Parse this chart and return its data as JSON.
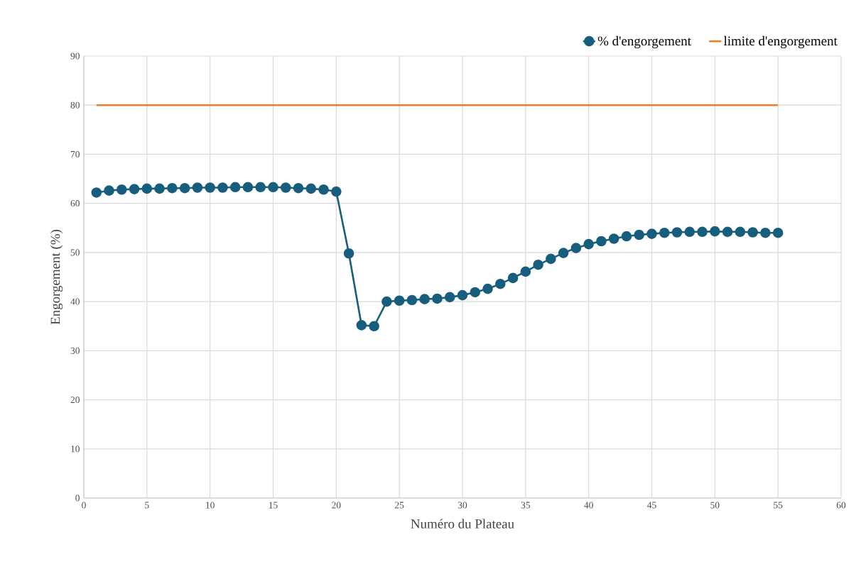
{
  "chart_data": {
    "type": "line",
    "xlabel": "Numéro du Plateau",
    "ylabel": "Engorgement (%)",
    "xlim": [
      0,
      60
    ],
    "ylim": [
      0,
      90
    ],
    "xticks": [
      0,
      5,
      10,
      15,
      20,
      25,
      30,
      35,
      40,
      45,
      50,
      55,
      60
    ],
    "yticks": [
      0,
      10,
      20,
      30,
      40,
      50,
      60,
      70,
      80,
      90
    ],
    "grid": true,
    "legend": "top right",
    "line_style": "solid",
    "series": [
      {
        "name": "% d'engorgement",
        "color": "#175e7e",
        "marker": "circle",
        "x": [
          1,
          2,
          3,
          4,
          5,
          6,
          7,
          8,
          9,
          10,
          11,
          12,
          13,
          14,
          15,
          16,
          17,
          18,
          19,
          20,
          21,
          22,
          23,
          24,
          25,
          26,
          27,
          28,
          29,
          30,
          31,
          32,
          33,
          34,
          35,
          36,
          37,
          38,
          39,
          40,
          41,
          42,
          43,
          44,
          45,
          46,
          47,
          48,
          49,
          50,
          51,
          52,
          53,
          54,
          55
        ],
        "values": [
          62.2,
          62.6,
          62.8,
          62.9,
          63.0,
          63.0,
          63.1,
          63.1,
          63.2,
          63.2,
          63.2,
          63.3,
          63.3,
          63.3,
          63.3,
          63.2,
          63.1,
          63.0,
          62.8,
          62.4,
          49.8,
          35.2,
          35.0,
          40.0,
          40.2,
          40.3,
          40.5,
          40.6,
          40.9,
          41.3,
          41.9,
          42.6,
          43.6,
          44.8,
          46.1,
          47.5,
          48.7,
          49.9,
          50.9,
          51.7,
          52.3,
          52.8,
          53.3,
          53.6,
          53.8,
          54.0,
          54.1,
          54.2,
          54.2,
          54.3,
          54.2,
          54.2,
          54.1,
          54.0,
          54.0
        ]
      },
      {
        "name": "limite d'engorgement",
        "color": "#ed7d31",
        "marker": "none",
        "x": [
          1,
          55
        ],
        "values": [
          80,
          80
        ]
      }
    ]
  }
}
